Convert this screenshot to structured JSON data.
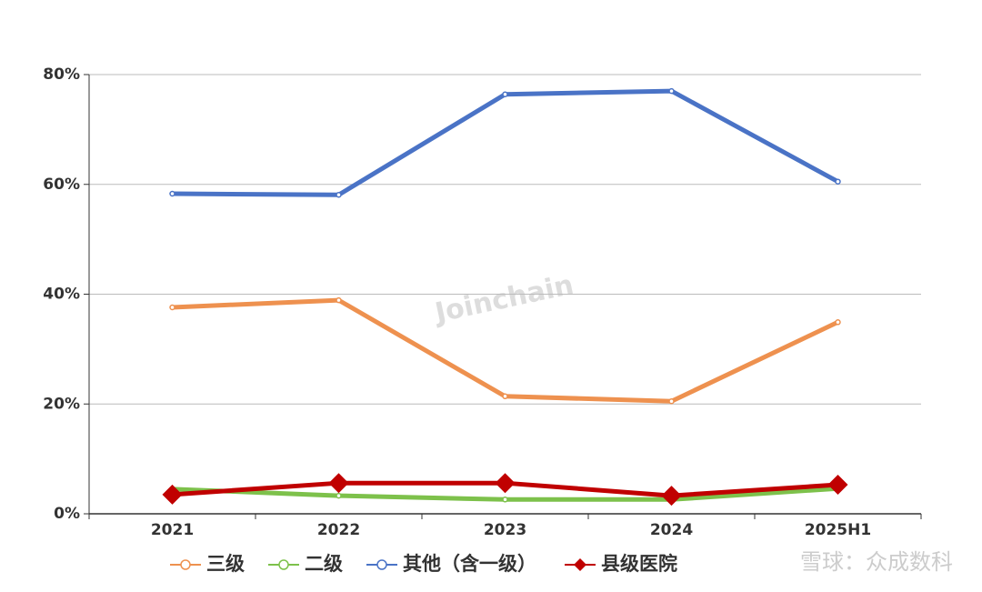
{
  "chart_data": {
    "type": "line",
    "categories": [
      "2021",
      "2022",
      "2023",
      "2024",
      "2025H1"
    ],
    "series": [
      {
        "name": "三级",
        "color": "#ee914f",
        "marker": "circle",
        "values": [
          37.6,
          38.9,
          21.4,
          20.5,
          34.9
        ]
      },
      {
        "name": "二级",
        "color": "#7dc14b",
        "marker": "circle",
        "values": [
          4.5,
          3.3,
          2.6,
          2.6,
          4.6
        ]
      },
      {
        "name": "其他（含一级）",
        "color": "#4a73c6",
        "marker": "circle",
        "values": [
          58.3,
          58.1,
          76.4,
          77.0,
          60.5
        ]
      },
      {
        "name": "县级医院",
        "color": "#c00000",
        "marker": "diamond",
        "values": [
          3.5,
          5.6,
          5.6,
          3.3,
          5.3
        ]
      }
    ],
    "ylim": [
      0,
      80
    ],
    "yticks": [
      {
        "value": 0,
        "label": "0%"
      },
      {
        "value": 20,
        "label": "20%"
      },
      {
        "value": 40,
        "label": "40%"
      },
      {
        "value": 60,
        "label": "60%"
      },
      {
        "value": 80,
        "label": "80%"
      }
    ],
    "grid": true,
    "legend": "bottom",
    "watermark": "Joinchain",
    "source_watermark": "雪球：众成数科"
  }
}
